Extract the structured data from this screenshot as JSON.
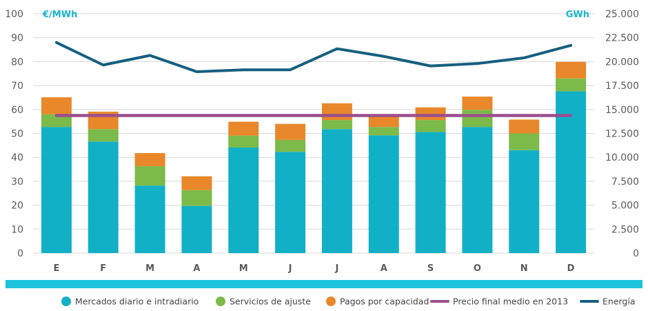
{
  "chart_data": {
    "type": "bar",
    "stacked": true,
    "categories": [
      "E",
      "F",
      "M",
      "A",
      "M",
      "J",
      "J",
      "A",
      "S",
      "O",
      "N",
      "D"
    ],
    "left_axis": {
      "unit": "€/MWh",
      "ylim": [
        0,
        100
      ],
      "ticks": [
        "100",
        "90",
        "80",
        "70",
        "60",
        "50",
        "40",
        "30",
        "20",
        "10",
        "0"
      ]
    },
    "right_axis": {
      "unit": "GWh",
      "ylim": [
        0,
        25000
      ],
      "ticks": [
        "25.000",
        "22.500",
        "20.000",
        "17.500",
        "15.000",
        "12.500",
        "10.000",
        "7.500",
        "5.000",
        "2.500",
        "0"
      ]
    },
    "grid": true,
    "legend_position": "bottom",
    "series": [
      {
        "name": "Mercados diario e intradiario",
        "type": "bar",
        "axis": "left",
        "color": "#12b0c6",
        "values": [
          52.7,
          46.6,
          28.2,
          19.7,
          44.1,
          42.3,
          51.8,
          49.2,
          50.6,
          52.7,
          43.0,
          67.6
        ]
      },
      {
        "name": "Servicios de ajuste",
        "type": "bar",
        "axis": "left",
        "color": "#7cba4a",
        "values": [
          5.3,
          5.2,
          8.1,
          6.6,
          5.0,
          5.0,
          3.8,
          3.5,
          5.0,
          7.2,
          7.0,
          5.4
        ]
      },
      {
        "name": "Pagos por capacidad",
        "type": "bar",
        "axis": "left",
        "color": "#e8882b",
        "values": [
          7.1,
          7.3,
          5.5,
          5.8,
          5.8,
          6.7,
          7.0,
          4.3,
          5.3,
          5.5,
          5.8,
          6.9
        ]
      },
      {
        "name": "Precio final medio en 2013",
        "type": "line",
        "axis": "left",
        "color": "#9b4e8e",
        "values": [
          57.5,
          57.5,
          57.5,
          57.5,
          57.5,
          57.5,
          57.5,
          57.5,
          57.5,
          57.5,
          57.5,
          57.5
        ]
      },
      {
        "name": "Energía",
        "type": "line",
        "axis": "right",
        "color": "#155f80",
        "values": [
          22000,
          19650,
          20650,
          18950,
          19150,
          19150,
          21350,
          20550,
          19550,
          19800,
          20400,
          21700
        ]
      }
    ]
  },
  "colors": {
    "axis_unit": "#1bb5cf",
    "grid": "#d7d7d7",
    "axis_band": "#1bc3dc",
    "tick_text": "#5a5a5a"
  }
}
